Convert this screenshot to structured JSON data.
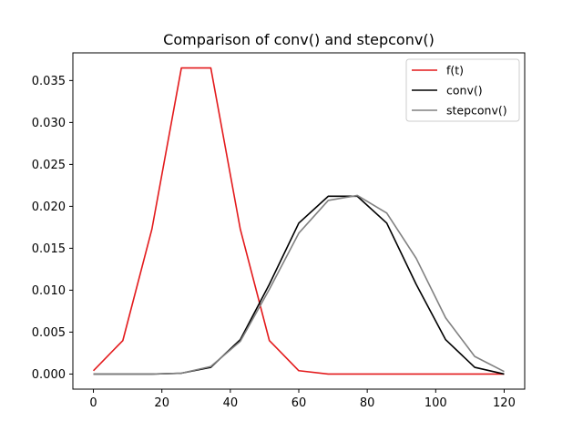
{
  "chart_data": {
    "type": "line",
    "title": "Comparison of conv() and stepconv()",
    "xlabel": "",
    "ylabel": "",
    "xlim": [
      -6,
      126
    ],
    "ylim": [
      -0.0018,
      0.0383
    ],
    "x_ticks": [
      0,
      20,
      40,
      60,
      80,
      100,
      120
    ],
    "y_ticks": [
      0.0,
      0.005,
      0.01,
      0.015,
      0.02,
      0.025,
      0.03,
      0.035
    ],
    "x_tick_labels": [
      "0",
      "20",
      "40",
      "60",
      "80",
      "100",
      "120"
    ],
    "y_tick_labels": [
      "0.000",
      "0.005",
      "0.010",
      "0.015",
      "0.020",
      "0.025",
      "0.030",
      "0.035"
    ],
    "grid": false,
    "legend_position": "top-right",
    "series": [
      {
        "name": "f(t)",
        "color": "#e31a1c",
        "x": [
          0,
          8.6,
          17.1,
          25.7,
          34.3,
          42.9,
          51.4,
          60,
          68.6,
          77.1,
          85.7,
          94.3,
          102.9,
          111.4,
          120
        ],
        "y": [
          0.0004,
          0.004,
          0.0173,
          0.0365,
          0.0365,
          0.0173,
          0.004,
          0.0004,
          0.0,
          0.0,
          0.0,
          0.0,
          0.0,
          0.0,
          0.0
        ]
      },
      {
        "name": "conv()",
        "color": "#000000",
        "x": [
          0,
          8.6,
          17.1,
          25.7,
          34.3,
          42.9,
          51.4,
          60,
          68.6,
          77.1,
          85.7,
          94.3,
          102.9,
          111.4,
          120
        ],
        "y": [
          0.0,
          0.0,
          0.0,
          0.0001,
          0.0008,
          0.0041,
          0.0107,
          0.018,
          0.0212,
          0.0212,
          0.018,
          0.0107,
          0.0041,
          0.0008,
          0.0
        ]
      },
      {
        "name": "stepconv()",
        "color": "#808080",
        "x": [
          0,
          8.6,
          17.1,
          25.7,
          34.3,
          42.9,
          51.4,
          60,
          68.6,
          77.1,
          85.7,
          94.3,
          102.9,
          111.4,
          120
        ],
        "y": [
          0.0,
          0.0,
          0.0,
          0.0001,
          0.0009,
          0.0039,
          0.0101,
          0.0168,
          0.0207,
          0.0213,
          0.0192,
          0.0138,
          0.0067,
          0.0021,
          0.0003
        ]
      }
    ]
  }
}
